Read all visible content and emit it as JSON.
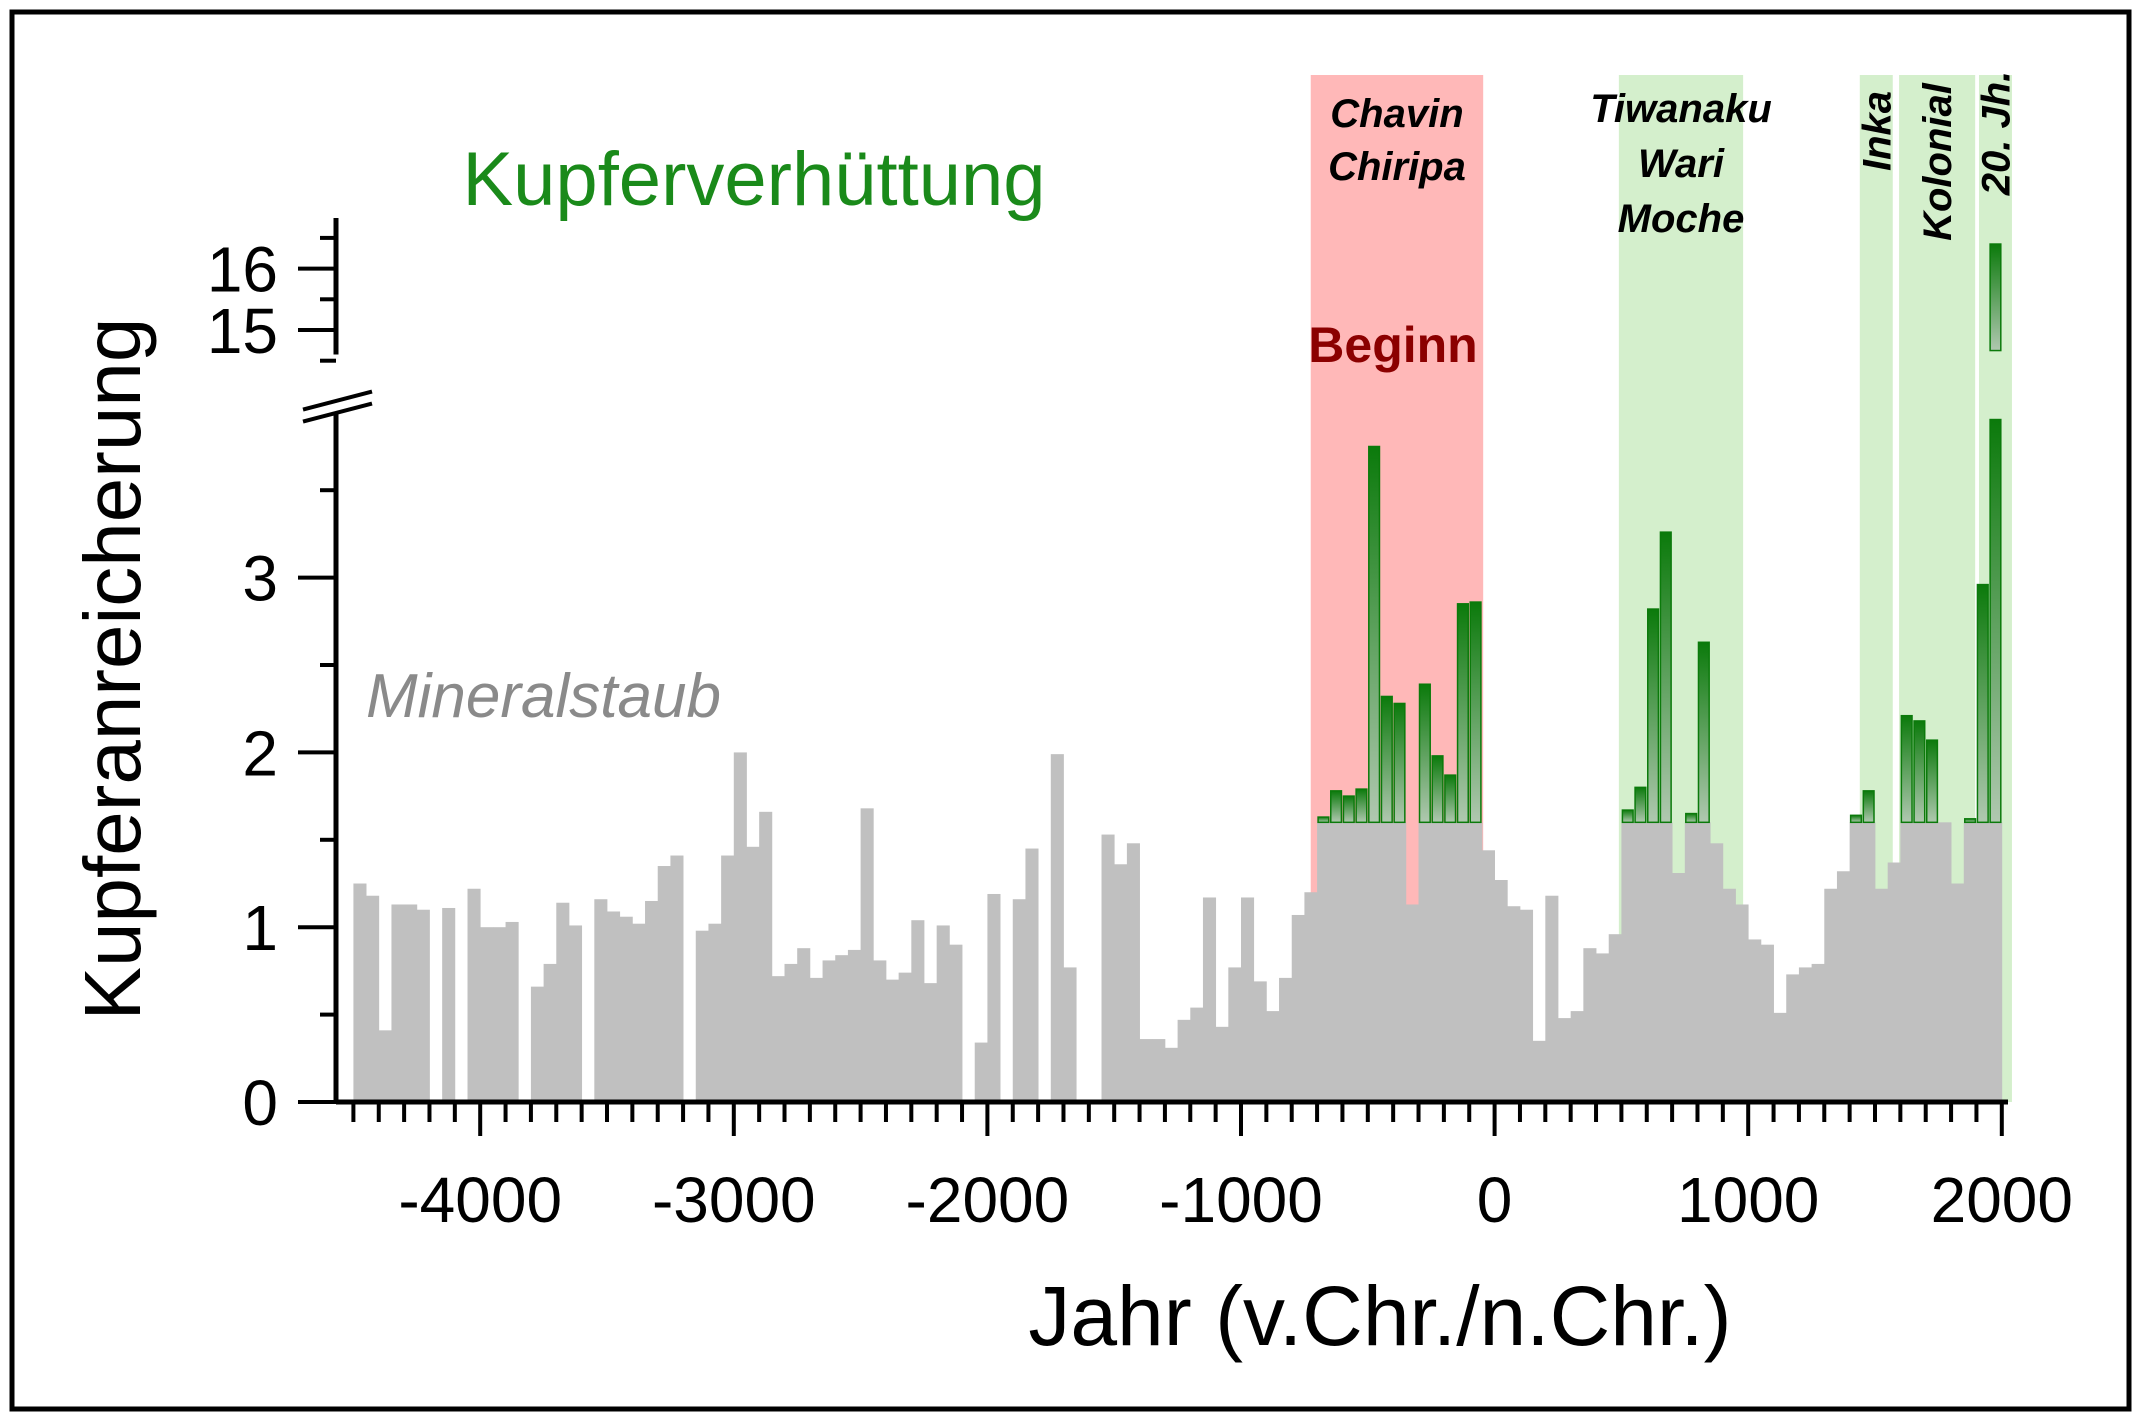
{
  "chart_data": {
    "type": "bar",
    "title": "Kupferverhüttung",
    "series_label": "Mineralstaub",
    "xlabel": "Jahr (v.Chr./n.Chr.)",
    "ylabel": "Kupferanreicherung",
    "xlim": [
      -4500,
      2000
    ],
    "ylim_lower": [
      0,
      3.95
    ],
    "ylim_upper": [
      14.6,
      17.1
    ],
    "y_axis_break": true,
    "bin_width": 50,
    "x_ticks": [
      -4000,
      -3000,
      -2000,
      -1000,
      0,
      1000,
      2000
    ],
    "x_tick_labels": [
      "-4000",
      "-3000",
      "-2000",
      "-1000",
      "0",
      "1000",
      "2000"
    ],
    "y_ticks_lower": [
      0,
      1,
      2,
      3
    ],
    "y_tick_labels_lower": [
      "0",
      "1",
      "2",
      "3"
    ],
    "y_ticks_upper": [
      15,
      16
    ],
    "y_tick_labels_upper": [
      "15",
      "16"
    ],
    "copper_threshold": 1.6,
    "x": [
      -4500,
      -4450,
      -4400,
      -4350,
      -4300,
      -4250,
      -4200,
      -4150,
      -4100,
      -4050,
      -4000,
      -3950,
      -3900,
      -3850,
      -3800,
      -3750,
      -3700,
      -3650,
      -3600,
      -3550,
      -3500,
      -3450,
      -3400,
      -3350,
      -3300,
      -3250,
      -3200,
      -3150,
      -3100,
      -3050,
      -3000,
      -2950,
      -2900,
      -2850,
      -2800,
      -2750,
      -2700,
      -2650,
      -2600,
      -2550,
      -2500,
      -2450,
      -2400,
      -2350,
      -2300,
      -2250,
      -2200,
      -2150,
      -2100,
      -2050,
      -2000,
      -1950,
      -1900,
      -1850,
      -1800,
      -1750,
      -1700,
      -1650,
      -1600,
      -1550,
      -1500,
      -1450,
      -1400,
      -1350,
      -1300,
      -1250,
      -1200,
      -1150,
      -1100,
      -1050,
      -1000,
      -950,
      -900,
      -850,
      -800,
      -750,
      -700,
      -650,
      -600,
      -550,
      -500,
      -450,
      -400,
      -350,
      -300,
      -250,
      -200,
      -150,
      -100,
      -50,
      0,
      50,
      100,
      150,
      200,
      250,
      300,
      350,
      400,
      450,
      500,
      550,
      600,
      650,
      700,
      750,
      800,
      850,
      900,
      950,
      1000,
      1050,
      1100,
      1150,
      1200,
      1250,
      1300,
      1350,
      1400,
      1450,
      1500,
      1550,
      1600,
      1650,
      1700,
      1750,
      1800,
      1850,
      1900,
      1950
    ],
    "values": [
      1.25,
      1.18,
      0.41,
      1.13,
      1.13,
      1.1,
      null,
      1.11,
      null,
      1.22,
      1.0,
      1.0,
      1.03,
      null,
      0.66,
      0.79,
      1.14,
      1.01,
      null,
      1.16,
      1.09,
      1.06,
      1.02,
      1.15,
      1.35,
      1.41,
      null,
      0.98,
      1.02,
      1.41,
      2.0,
      1.46,
      1.66,
      0.72,
      0.79,
      0.88,
      0.71,
      0.81,
      0.84,
      0.87,
      1.68,
      0.81,
      0.7,
      0.74,
      1.04,
      0.68,
      1.01,
      0.9,
      null,
      0.34,
      1.19,
      null,
      1.16,
      1.45,
      null,
      1.99,
      0.77,
      null,
      null,
      1.53,
      1.36,
      1.48,
      0.36,
      0.36,
      0.31,
      0.47,
      0.54,
      1.17,
      0.43,
      0.77,
      1.17,
      0.69,
      0.52,
      0.71,
      1.07,
      1.2,
      1.63,
      1.78,
      1.75,
      1.79,
      3.75,
      2.32,
      2.28,
      1.13,
      2.39,
      1.98,
      1.87,
      2.85,
      2.86,
      1.44,
      1.27,
      1.12,
      1.1,
      0.35,
      1.18,
      0.48,
      0.52,
      0.88,
      0.85,
      0.96,
      1.67,
      1.8,
      2.82,
      3.26,
      1.31,
      1.65,
      2.63,
      1.48,
      1.22,
      1.13,
      0.93,
      0.9,
      0.51,
      0.73,
      0.77,
      0.79,
      1.22,
      1.32,
      1.64,
      1.78,
      1.22,
      1.37,
      2.21,
      2.18,
      2.07,
      1.6,
      1.25,
      1.62,
      2.96,
      16.4
    ],
    "copper_bins": [
      -700,
      -650,
      -600,
      -550,
      -500,
      -450,
      -400,
      -300,
      -250,
      -200,
      -150,
      -100,
      500,
      550,
      600,
      650,
      750,
      800,
      1400,
      1450,
      1600,
      1650,
      1700,
      1850,
      1900,
      1950
    ],
    "periods": [
      {
        "labels": [
          "Chavin",
          "Chiripa"
        ],
        "range": [
          -725,
          -45
        ],
        "color": "#ffb8b8",
        "orientation": "horizontal"
      },
      {
        "labels": [
          "Tiwanaku",
          "Wari",
          "Moche"
        ],
        "range": [
          490,
          980
        ],
        "color": "#d4efcc",
        "orientation": "horizontal"
      },
      {
        "labels": [
          "Inka"
        ],
        "range": [
          1440,
          1570
        ],
        "color": "#d4efcc",
        "orientation": "vertical"
      },
      {
        "labels": [
          "Kolonial"
        ],
        "range": [
          1595,
          1895
        ],
        "color": "#d4efcc",
        "orientation": "vertical"
      },
      {
        "labels": [
          "20. Jh."
        ],
        "range": [
          1910,
          2040
        ],
        "color": "#d4efcc",
        "orientation": "vertical"
      }
    ],
    "annotation": "Beginn",
    "colors": {
      "dust": "#c0c0c0",
      "copper": "#0b7a0b",
      "title": "#1a8a1a",
      "annotation": "#8b0000",
      "series_label": "#8a8a8a"
    }
  }
}
